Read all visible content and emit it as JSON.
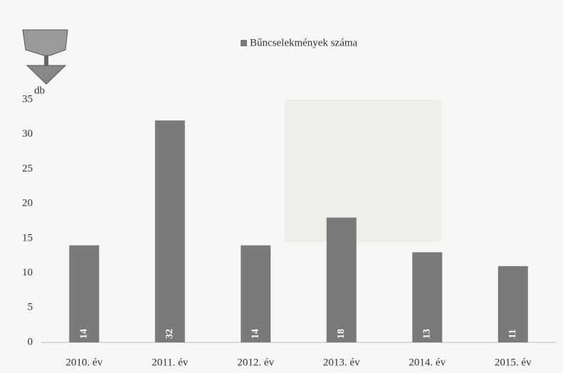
{
  "chart_data": {
    "type": "bar",
    "y_label": "db",
    "categories": [
      "2010. év",
      "2011. év",
      "2012. év",
      "2013. év",
      "2014. év",
      "2015. év"
    ],
    "series": [
      {
        "name": "Bűncselekmények száma",
        "color": "#7a7a7a",
        "values": [
          14,
          32,
          14,
          18,
          13,
          11
        ]
      }
    ],
    "ylim": [
      0,
      35
    ],
    "yticks": [
      0,
      5,
      10,
      15,
      20,
      25,
      30,
      35
    ],
    "grid": false,
    "legend": "top",
    "data_labels": true
  }
}
